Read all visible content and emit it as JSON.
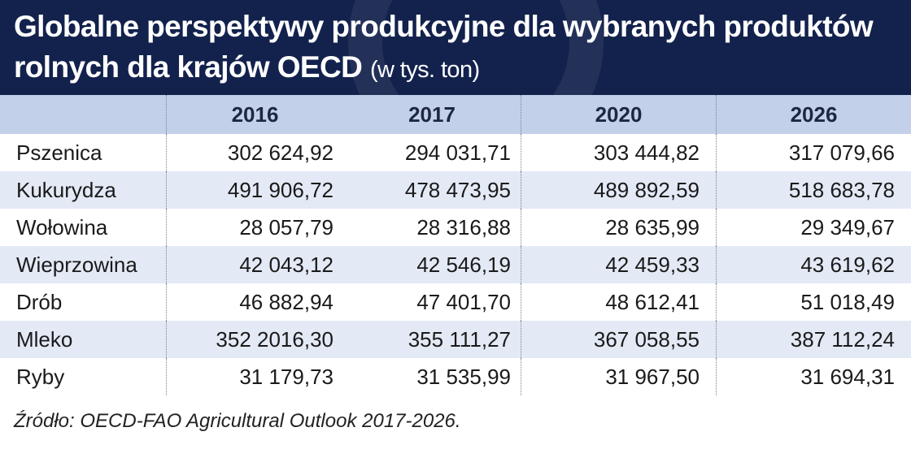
{
  "title": "Globalne perspektywy produkcyjne dla wybranych produktów rolnych dla krajów OECD",
  "unit": "(w tys. ton)",
  "source": "Źródło: OECD-FAO Agricultural Outlook 2017-2026.",
  "colors": {
    "header_bg": "#13224d",
    "table_head_bg": "#c3d0ea",
    "row_alt_bg": "#e3e9f5"
  },
  "chart_data": {
    "type": "table",
    "title": "Globalne perspektywy produkcyjne dla wybranych produktów rolnych dla krajów OECD (w tys. ton)",
    "columns": [
      "2016",
      "2017",
      "2020",
      "2026"
    ],
    "rows": [
      {
        "label": "Pszenica",
        "values": [
          "302 624,92",
          "294 031,71",
          "303 444,82",
          "317 079,66"
        ]
      },
      {
        "label": "Kukurydza",
        "values": [
          "491 906,72",
          "478 473,95",
          "489 892,59",
          "518 683,78"
        ]
      },
      {
        "label": "Wołowina",
        "values": [
          "28 057,79",
          "28 316,88",
          "28 635,99",
          "29 349,67"
        ]
      },
      {
        "label": "Wieprzowina",
        "values": [
          "42 043,12",
          "42 546,19",
          "42 459,33",
          "43 619,62"
        ]
      },
      {
        "label": "Drób",
        "values": [
          "46 882,94",
          "47 401,70",
          "48 612,41",
          "51 018,49"
        ]
      },
      {
        "label": "Mleko",
        "values": [
          "352 2016,30",
          "355 111,27",
          "367 058,55",
          "387 112,24"
        ]
      },
      {
        "label": "Ryby",
        "values": [
          "31 179,73",
          "31 535,99",
          "31 967,50",
          "31 694,31"
        ]
      }
    ]
  }
}
